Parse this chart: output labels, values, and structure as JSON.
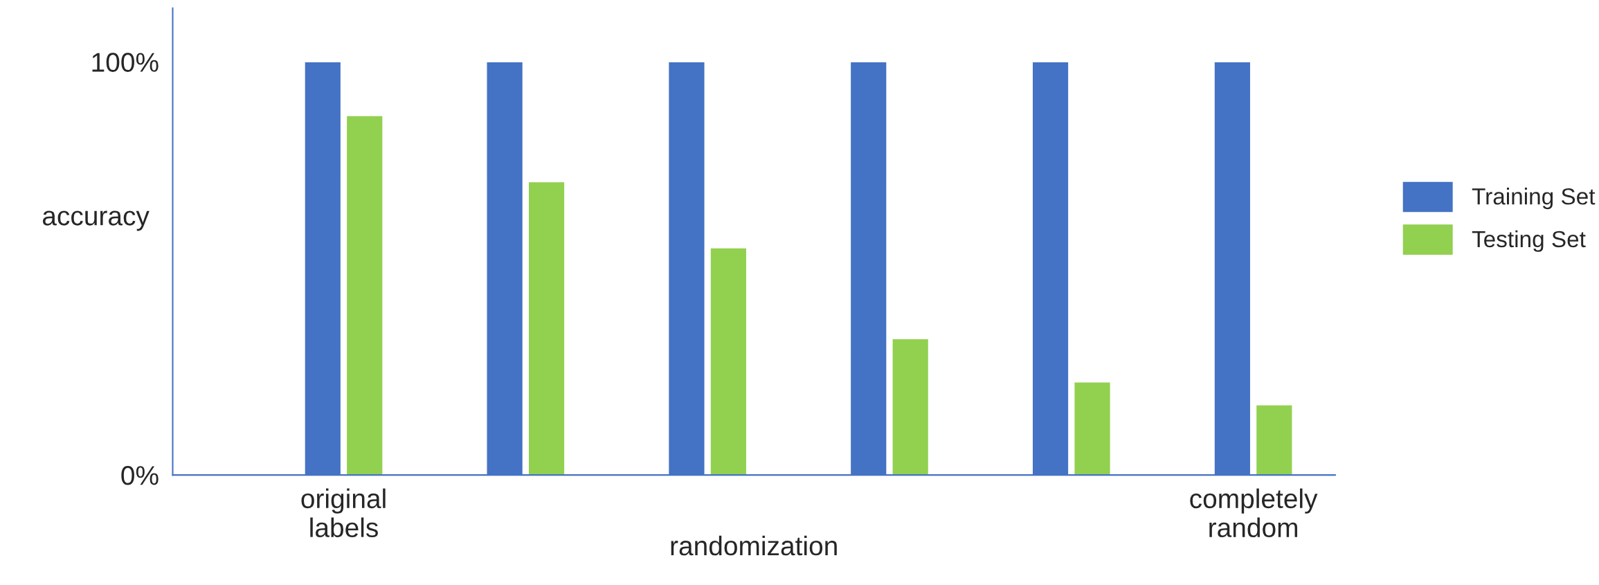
{
  "chart_data": {
    "type": "bar",
    "ylabel": "accuracy",
    "xlabel": "randomization",
    "categories": [
      "original\nlabels",
      null,
      null,
      null,
      null,
      "completely\nrandom"
    ],
    "series": [
      {
        "name": "Training Set",
        "color": "#4472c4",
        "values": [
          100,
          100,
          100,
          100,
          100,
          100
        ]
      },
      {
        "name": "Testing Set",
        "color": "#92d050",
        "values": [
          87,
          71,
          55,
          33,
          22.5,
          17
        ]
      }
    ],
    "ylim": [
      0,
      113
    ],
    "yticks": [
      {
        "value": 0,
        "label": "0%"
      },
      {
        "value": 100,
        "label": "100%"
      }
    ],
    "grid": false,
    "legend": "right"
  }
}
